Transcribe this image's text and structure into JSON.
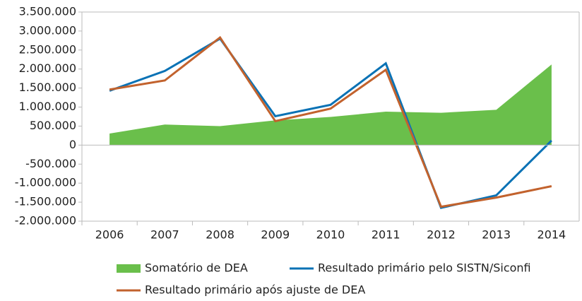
{
  "chart_data": {
    "type": "line",
    "categories": [
      "2006",
      "2007",
      "2008",
      "2009",
      "2010",
      "2011",
      "2012",
      "2013",
      "2014"
    ],
    "series": [
      {
        "name": "Somatório de DEA",
        "kind": "area",
        "color": "#6abf4b",
        "values": [
          305000,
          540000,
          500000,
          650000,
          740000,
          880000,
          850000,
          930000,
          2120000
        ]
      },
      {
        "name": "Resultado primário pelo SISTN/Siconfi",
        "kind": "line",
        "color": "#0a72b5",
        "values": [
          1430000,
          1950000,
          2800000,
          760000,
          1060000,
          2150000,
          -1650000,
          -1320000,
          120000
        ]
      },
      {
        "name": "Resultado primário após ajuste de DEA",
        "kind": "line",
        "color": "#c2622d",
        "values": [
          1460000,
          1700000,
          2830000,
          630000,
          960000,
          1980000,
          -1620000,
          -1380000,
          -1080000
        ]
      }
    ],
    "ylim": [
      -2000000,
      3500000
    ],
    "yticks": [
      {
        "value": -2000000,
        "label": "-2.000.000"
      },
      {
        "value": -1500000,
        "label": "-1.500.000"
      },
      {
        "value": -1000000,
        "label": "-1.000.000"
      },
      {
        "value": -500000,
        "label": "-500.000"
      },
      0,
      {
        "value": 500000,
        "label": "500.000"
      },
      {
        "value": 1000000,
        "label": "1.000.000"
      },
      {
        "value": 1500000,
        "label": "1.500.000"
      },
      {
        "value": 2000000,
        "label": "2.000.000"
      },
      {
        "value": 2500000,
        "label": "2.500.000"
      },
      {
        "value": 3000000,
        "label": "3.000.000"
      },
      {
        "value": 3500000,
        "label": "3.500.000"
      }
    ],
    "legend": "bottom"
  }
}
